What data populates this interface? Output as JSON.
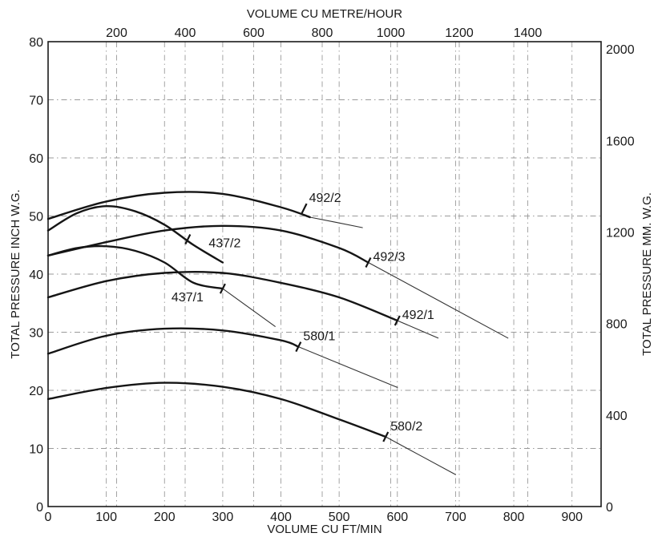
{
  "chart_data": {
    "type": "line",
    "title": "",
    "xlabel": "VOLUME CU FT/MIN",
    "x2label": "VOLUME CU METRE/HOUR",
    "ylabel": "TOTAL PRESSURE INCH W.G.",
    "y2label": "TOTAL PRESSURE MM. W.G.",
    "xlim": [
      0,
      950
    ],
    "ylim": [
      0,
      80
    ],
    "x2lim": [
      0,
      1614
    ],
    "y2lim": [
      0,
      2032
    ],
    "grid": true,
    "x_ticks": [
      "0",
      "100",
      "200",
      "300",
      "400",
      "500",
      "600",
      "700",
      "800",
      "900"
    ],
    "y_ticks": [
      "0",
      "10",
      "20",
      "30",
      "40",
      "50",
      "60",
      "70",
      "80"
    ],
    "x2_ticks": [
      "200",
      "400",
      "600",
      "800",
      "1000",
      "1200",
      "1400"
    ],
    "y2_ticks": [
      "0",
      "400",
      "800",
      "1200",
      "1600",
      "2000"
    ],
    "series": [
      {
        "name": "492/2",
        "x": [
          0,
          100,
          200,
          300,
          400,
          450
        ],
        "y": [
          49.5,
          52.5,
          54.0,
          53.8,
          51.5,
          49.8
        ],
        "extension": {
          "x": [
            450,
            540
          ],
          "y": [
            49.8,
            48.0
          ]
        },
        "marker": [
          440,
          51.3
        ]
      },
      {
        "name": "437/2",
        "x": [
          0,
          50,
          100,
          150,
          200,
          250,
          300
        ],
        "y": [
          47.5,
          50.5,
          51.7,
          50.8,
          48.5,
          45.0,
          42.0
        ],
        "extension": null,
        "marker": [
          240,
          46.0
        ]
      },
      {
        "name": "492/3",
        "x": [
          0,
          100,
          200,
          300,
          400,
          500,
          550
        ],
        "y": [
          43.2,
          45.5,
          47.5,
          48.3,
          47.5,
          44.5,
          42.0
        ],
        "extension": {
          "x": [
            550,
            790
          ],
          "y": [
            42.0,
            29.0
          ]
        },
        "marker": [
          550,
          42.0
        ]
      },
      {
        "name": "437/1",
        "x": [
          0,
          50,
          100,
          150,
          200,
          250,
          300
        ],
        "y": [
          43.2,
          44.5,
          44.8,
          44.0,
          42.0,
          38.5,
          37.5
        ],
        "extension": {
          "x": [
            300,
            390
          ],
          "y": [
            37.5,
            31.0
          ]
        },
        "marker": [
          300,
          37.5
        ]
      },
      {
        "name": "492/1",
        "x": [
          0,
          100,
          200,
          300,
          400,
          500,
          600
        ],
        "y": [
          36.0,
          38.8,
          40.2,
          40.2,
          38.5,
          36.0,
          32.0
        ],
        "extension": {
          "x": [
            600,
            670
          ],
          "y": [
            32.0,
            29.0
          ]
        },
        "marker": [
          600,
          32.0
        ]
      },
      {
        "name": "580/1",
        "x": [
          0,
          100,
          200,
          300,
          400,
          430
        ],
        "y": [
          26.3,
          29.4,
          30.6,
          30.3,
          28.6,
          27.5
        ],
        "extension": {
          "x": [
            430,
            600
          ],
          "y": [
            27.5,
            20.5
          ]
        },
        "marker": [
          430,
          27.5
        ]
      },
      {
        "name": "580/2",
        "x": [
          0,
          100,
          200,
          300,
          400,
          500,
          580
        ],
        "y": [
          18.5,
          20.4,
          21.3,
          20.6,
          18.5,
          15.0,
          12.0
        ],
        "extension": {
          "x": [
            580,
            700
          ],
          "y": [
            12.0,
            5.5
          ]
        },
        "marker": [
          580,
          12.0
        ]
      }
    ]
  }
}
